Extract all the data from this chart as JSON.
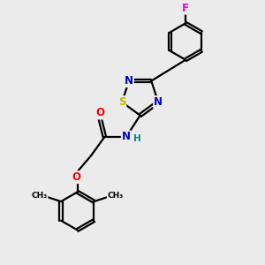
{
  "background_color": "#ebebeb",
  "bond_color": "#000000",
  "figsize": [
    3.0,
    3.0
  ],
  "dpi": 100,
  "atom_colors": {
    "N": "#0000cc",
    "O": "#ff0000",
    "S": "#bbbb00",
    "F": "#ee00ee",
    "C": "#000000",
    "H": "#008888"
  },
  "lw": 1.6,
  "fs": 8.5
}
